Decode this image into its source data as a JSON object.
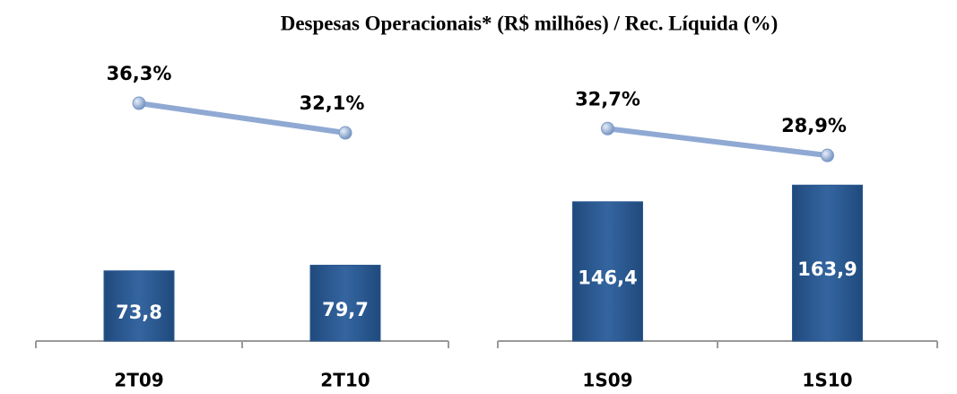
{
  "title": "Despesas Operacionais* (R$ milhões)  / Rec. Líquida (%)",
  "chart_data": [
    {
      "type": "bar_line",
      "categories": [
        "2T09",
        "2T10"
      ],
      "series": [
        {
          "type": "bar",
          "color": "#2b5a92",
          "values": [
            73.8,
            79.7
          ],
          "value_labels": [
            "73,8",
            "79,7"
          ]
        },
        {
          "type": "line",
          "color": "#8fa9d3",
          "values": [
            36.3,
            32.1
          ],
          "value_labels": [
            "36,3%",
            "32,1%"
          ]
        }
      ]
    },
    {
      "type": "bar_line",
      "categories": [
        "1S09",
        "1S10"
      ],
      "series": [
        {
          "type": "bar",
          "color": "#2b5a92",
          "values": [
            146.4,
            163.9
          ],
          "value_labels": [
            "146,4",
            "163,9"
          ]
        },
        {
          "type": "line",
          "color": "#8fa9d3",
          "values": [
            32.7,
            28.9
          ],
          "value_labels": [
            "32,7%",
            "28,9%"
          ]
        }
      ]
    }
  ]
}
